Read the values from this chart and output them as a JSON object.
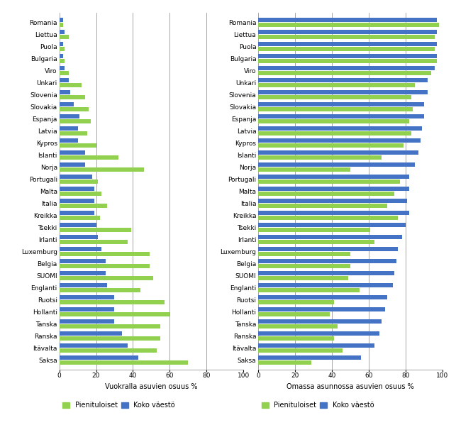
{
  "countries": [
    "Romania",
    "Liettua",
    "Puola",
    "Bulgaria",
    "Viro",
    "Unkari",
    "Slovenia",
    "Slovakia",
    "Espanja",
    "Latvia",
    "Kypros",
    "Islanti",
    "Norja",
    "Portugali",
    "Malta",
    "Italia",
    "Kreikka",
    "Tsekki",
    "Irlanti",
    "Luxemburg",
    "Belgia",
    "SUOMI",
    "Englanti",
    "Ruotsi",
    "Hollanti",
    "Tanska",
    "Ranska",
    "Itävalta",
    "Saksa"
  ],
  "rent_low_income": [
    2,
    5,
    3,
    3,
    5,
    12,
    14,
    16,
    17,
    15,
    20,
    32,
    46,
    21,
    23,
    26,
    22,
    39,
    37,
    49,
    49,
    51,
    44,
    57,
    60,
    55,
    55,
    53,
    70
  ],
  "rent_total": [
    2,
    3,
    2,
    2,
    3,
    5,
    6,
    8,
    11,
    10,
    10,
    14,
    14,
    18,
    19,
    19,
    19,
    20,
    21,
    23,
    25,
    25,
    26,
    30,
    30,
    30,
    34,
    37,
    43
  ],
  "own_low_income": [
    98,
    96,
    96,
    97,
    94,
    85,
    83,
    84,
    82,
    83,
    79,
    67,
    50,
    77,
    74,
    70,
    76,
    61,
    63,
    50,
    50,
    49,
    55,
    41,
    39,
    43,
    41,
    46,
    29
  ],
  "own_total": [
    97,
    97,
    97,
    97,
    96,
    92,
    92,
    90,
    90,
    89,
    88,
    87,
    85,
    82,
    82,
    81,
    82,
    80,
    78,
    76,
    75,
    74,
    73,
    70,
    69,
    67,
    66,
    63,
    56
  ],
  "color_low_income": "#92d050",
  "color_total": "#4472c4",
  "xlabel_left": "Vuokralla asuvien osuus %",
  "xlabel_right": "Omassa asunnossa asuvien osuus %",
  "legend_low": "Pienituloiset",
  "legend_total": "Koko väestö",
  "xlim": [
    0,
    100
  ],
  "xticks": [
    0,
    20,
    40,
    60,
    80,
    100
  ],
  "grid_color": "#808080",
  "background_color": "#ffffff",
  "bar_height": 0.35,
  "bar_gap": 0.03,
  "label_fontsize": 6.5,
  "tick_fontsize": 6.5,
  "xlabel_fontsize": 7.0,
  "legend_fontsize": 7.0
}
